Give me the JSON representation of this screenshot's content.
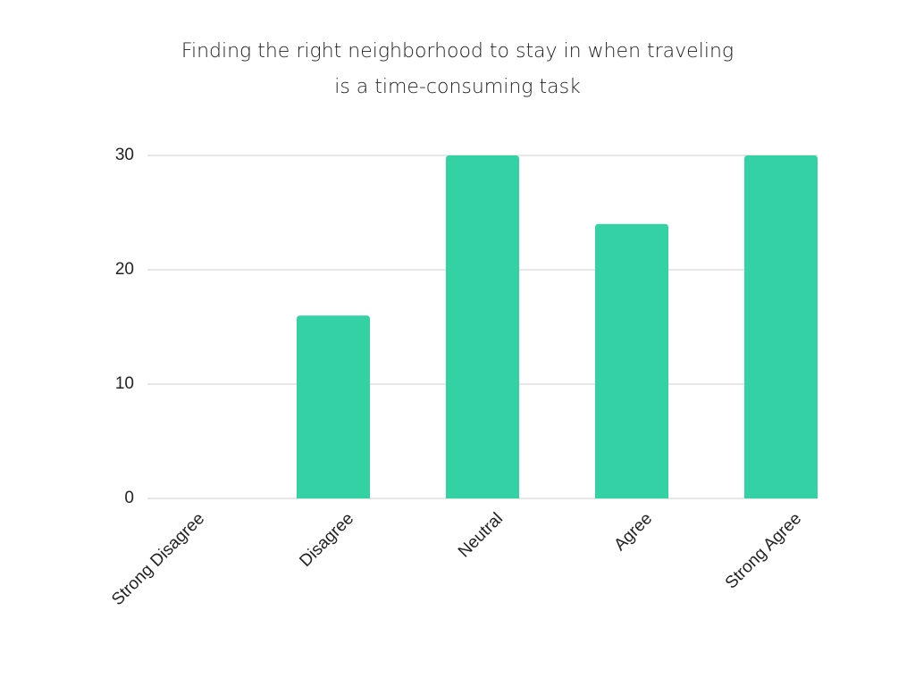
{
  "chart_data": {
    "type": "bar",
    "title": "Finding the right neighborhood to stay in when traveling is a time-consuming task",
    "categories": [
      "Strong Disagree",
      "Disagree",
      "Neutral",
      "Agree",
      "Strong Agree"
    ],
    "values": [
      0,
      16,
      30,
      24,
      30
    ],
    "color": "#33d1a4",
    "ylim": [
      0,
      30
    ],
    "yticks": [
      0,
      10,
      20,
      30
    ],
    "grid": true
  }
}
